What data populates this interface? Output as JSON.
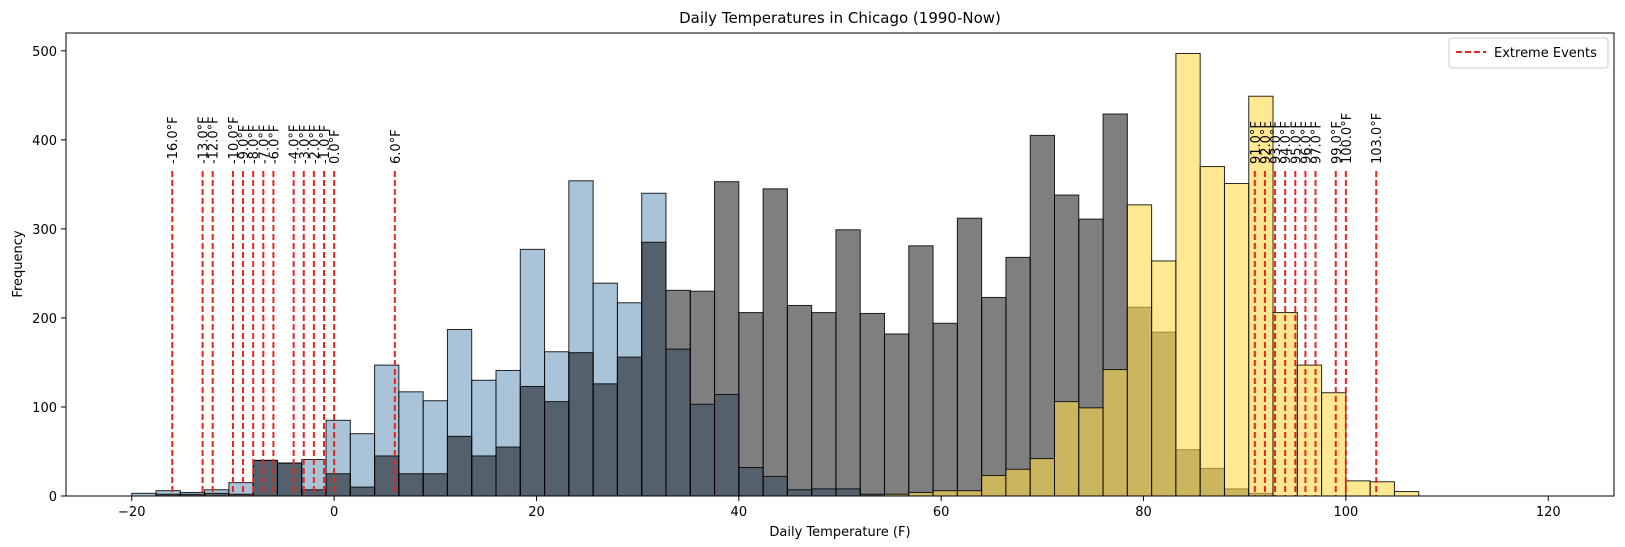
{
  "chart_data": {
    "type": "bar",
    "title": "Daily Temperatures in Chicago (1990-Now)",
    "xlabel": "Daily Temperature (F)",
    "ylabel": "Frequency",
    "xlim": [
      -26.5,
      126.5
    ],
    "ylim": [
      0,
      520
    ],
    "xticks": [
      -20,
      0,
      20,
      40,
      60,
      80,
      100,
      120
    ],
    "yticks": [
      0,
      100,
      200,
      300,
      400,
      500
    ],
    "grid": false,
    "legend_position": "top-right",
    "legend_label": "Extreme Events",
    "bin_width": 2.4,
    "series": [
      {
        "color": "#7ba3c4",
        "opacity": 0.65,
        "bin_starts": [
          -20,
          -17.6,
          -15.2,
          -12.8,
          -10.4,
          -8,
          -5.6,
          -3.2,
          -0.8,
          1.6,
          4,
          6.4,
          8.8,
          11.2,
          13.6,
          16,
          18.4,
          20.8,
          23.2,
          25.6,
          28,
          30.4,
          32.8,
          35.2,
          37.6,
          40,
          42.4,
          44.8,
          47.2,
          49.6,
          52
        ],
        "values": [
          3,
          6,
          4,
          7,
          15,
          40,
          37,
          41,
          85,
          70,
          147,
          117,
          107,
          187,
          130,
          141,
          277,
          162,
          354,
          239,
          217,
          340,
          165,
          103,
          114,
          32,
          22,
          7,
          8,
          8,
          2
        ]
      },
      {
        "color": "#000000",
        "opacity": 0.5,
        "bin_starts": [
          -17.6,
          -15.2,
          -12.8,
          -10.4,
          -8,
          -5.6,
          -3.2,
          -0.8,
          1.6,
          4,
          6.4,
          8.8,
          11.2,
          13.6,
          16,
          18.4,
          20.8,
          23.2,
          25.6,
          28,
          30.4,
          32.8,
          35.2,
          37.6,
          40,
          42.4,
          44.8,
          47.2,
          49.6,
          52,
          54.4,
          56.8,
          59.2,
          61.6,
          64,
          66.4,
          68.8,
          71.2,
          73.6,
          76,
          78.4,
          80.8,
          83.2,
          85.6,
          88,
          90.4
        ],
        "values": [
          2,
          2,
          3,
          2,
          40,
          37,
          7,
          25,
          10,
          45,
          25,
          25,
          67,
          45,
          55,
          123,
          106,
          161,
          126,
          156,
          285,
          231,
          230,
          353,
          206,
          345,
          214,
          206,
          299,
          205,
          182,
          281,
          194,
          312,
          223,
          268,
          405,
          338,
          311,
          429,
          212,
          184,
          52,
          31,
          8,
          3
        ]
      },
      {
        "color": "#ffd84a",
        "opacity": 0.6,
        "bin_starts": [
          54.4,
          56.8,
          59.2,
          61.6,
          64,
          66.4,
          68.8,
          71.2,
          73.6,
          76,
          78.4,
          80.8,
          83.2,
          85.6,
          88,
          90.4,
          92.8,
          95.2,
          97.6,
          100,
          102.4,
          104.8
        ],
        "values": [
          2,
          4,
          6,
          6,
          23,
          30,
          42,
          106,
          99,
          142,
          327,
          264,
          497,
          370,
          351,
          449,
          206,
          147,
          116,
          17,
          16,
          5
        ]
      }
    ],
    "extreme_events": {
      "line_top": 365,
      "values": [
        -16,
        -13,
        -12,
        -10,
        -9,
        -8,
        -7,
        -6,
        -4,
        -3,
        -2,
        -1,
        0,
        6,
        91,
        92,
        93,
        94,
        95,
        96,
        97,
        99,
        100,
        103
      ],
      "labels": [
        "-16.0°F",
        "-13.0°F",
        "-12.0°F",
        "-10.0°F",
        "-9.0°F",
        "-8.0°F",
        "-7.0°F",
        "-6.0°F",
        "-4.0°F",
        "-3.0°F",
        "-2.0°F",
        "-1.0°F",
        "0.0°F",
        "6.0°F",
        "91.0°F",
        "92.0°F",
        "93.0°F",
        "94.0°F",
        "95.0°F",
        "96.0°F",
        "97.0°F",
        "99.0°F",
        "100.0°F",
        "103.0°F"
      ]
    },
    "colors": {
      "event_line": "#e8251f",
      "bar_edge": "#000000"
    }
  }
}
